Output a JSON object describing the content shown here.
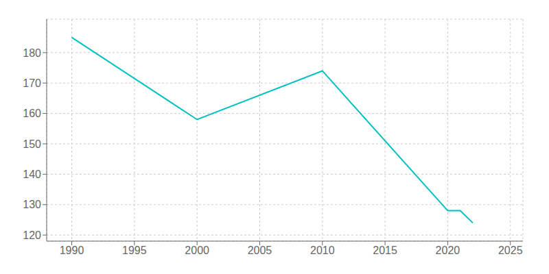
{
  "chart_data": {
    "type": "line",
    "x": [
      1990,
      2000,
      2010,
      2020,
      2021,
      2022
    ],
    "values": [
      185,
      158,
      174,
      128,
      128,
      124
    ],
    "color": "#00c0c0",
    "xlim": [
      1988,
      2026
    ],
    "ylim": [
      118,
      191
    ],
    "xticks": [
      1990,
      1995,
      2000,
      2005,
      2010,
      2015,
      2020,
      2025
    ],
    "yticks": [
      120,
      130,
      140,
      150,
      160,
      170,
      180
    ],
    "grid": true
  }
}
